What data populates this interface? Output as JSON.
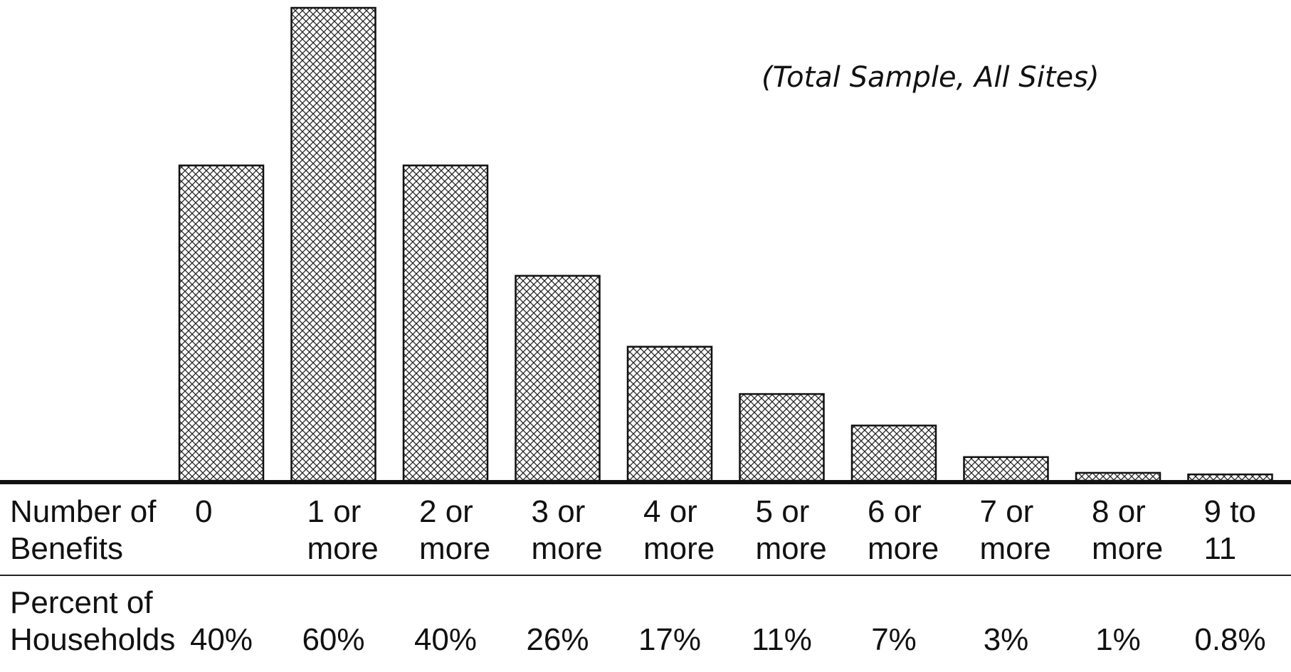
{
  "chart_data": {
    "type": "bar",
    "title": "",
    "subtitle": "(Total Sample, All Sites)",
    "xlabel": "Number of Benefits",
    "ylabel": "Percent of Households",
    "categories": [
      "0",
      "1 or\nmore",
      "2 or\nmore",
      "3 or\nmore",
      "4 or\nmore",
      "5 or\nmore",
      "6 or\nmore",
      "7 or\nmore",
      "8 or\nmore",
      "9 to\n11"
    ],
    "values": [
      40,
      60,
      40,
      26,
      17,
      11,
      7,
      3,
      1,
      0.8
    ],
    "value_labels": [
      "40%",
      "60%",
      "40%",
      "26%",
      "17%",
      "11%",
      "7%",
      "3%",
      "1%",
      "0.8%"
    ],
    "ylim": [
      0,
      60
    ],
    "grid": false,
    "fill_pattern": "crosshatch"
  },
  "labels": {
    "row1": "Number of\nBenefits",
    "row2": "Percent of\nHouseholds"
  }
}
